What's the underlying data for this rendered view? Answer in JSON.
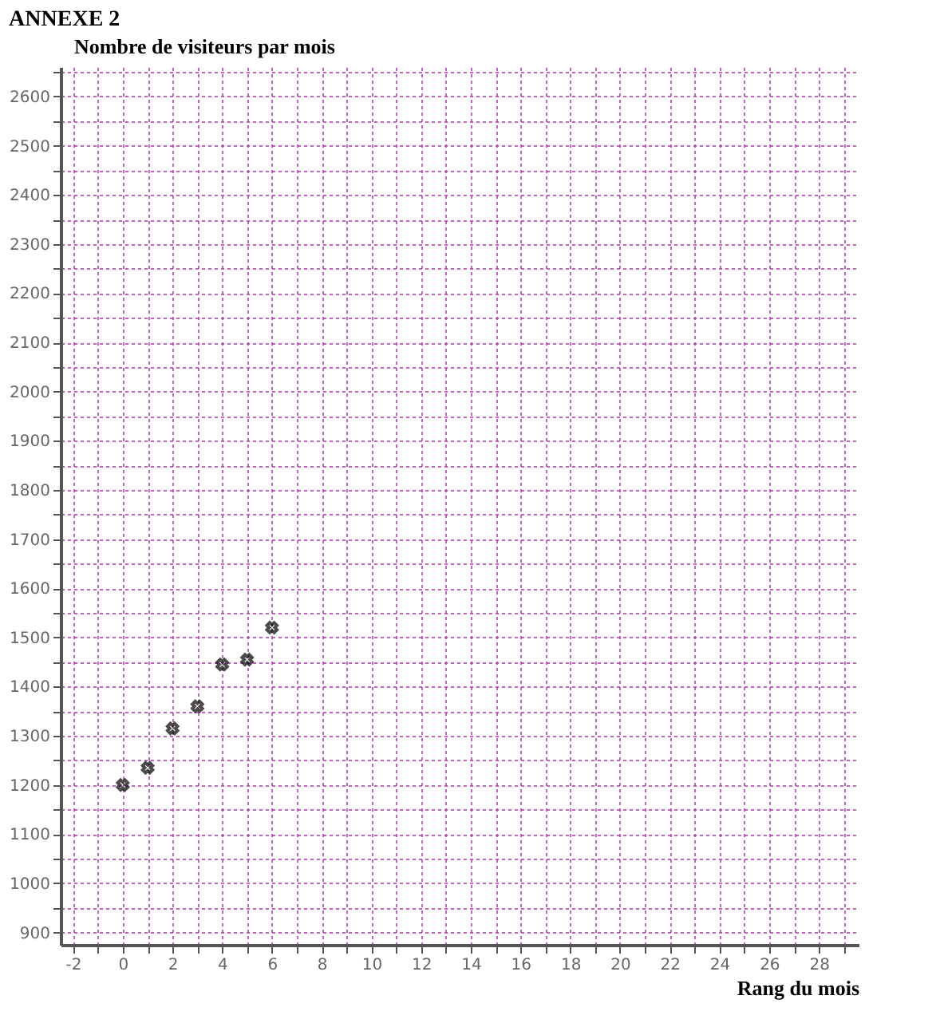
{
  "chart_data": {
    "type": "scatter",
    "title": "ANNEXE 2",
    "xlabel": "Rang du mois",
    "ylabel": "Nombre de visiteurs par mois",
    "x": [
      0,
      1,
      2,
      3,
      4,
      5,
      6
    ],
    "series": [
      {
        "color": "#000000",
        "values": [
          1200,
          1235,
          1315,
          1360,
          1445,
          1455,
          1520
        ]
      }
    ],
    "marker": "cross",
    "grid": true,
    "xlim": [
      -2.5,
      29.6
    ],
    "ylim": [
      875,
      2660
    ],
    "xticks": [
      -2,
      {
        "value": -1,
        "label": null
      },
      0,
      {
        "value": 1,
        "label": null
      },
      2,
      {
        "value": 3,
        "label": null
      },
      4,
      {
        "value": 5,
        "label": null
      },
      6,
      {
        "value": 7,
        "label": null
      },
      8,
      {
        "value": 9,
        "label": null
      },
      10,
      {
        "value": 11,
        "label": null
      },
      12,
      {
        "value": 13,
        "label": null
      },
      14,
      {
        "value": 15,
        "label": null
      },
      16,
      {
        "value": 17,
        "label": null
      },
      18,
      {
        "value": 19,
        "label": null
      },
      20,
      {
        "value": 21,
        "label": null
      },
      22,
      {
        "value": 23,
        "label": null
      },
      24,
      {
        "value": 25,
        "label": null
      },
      26,
      {
        "value": 27,
        "label": null
      },
      28,
      {
        "value": 29,
        "label": null
      }
    ],
    "yticks": [
      900,
      {
        "value": 950,
        "label": null
      },
      1000,
      {
        "value": 1050,
        "label": null
      },
      1100,
      {
        "value": 1150,
        "label": null
      },
      1200,
      {
        "value": 1250,
        "label": null
      },
      1300,
      {
        "value": 1350,
        "label": null
      },
      1400,
      {
        "value": 1450,
        "label": null
      },
      1500,
      {
        "value": 1550,
        "label": null
      },
      1600,
      {
        "value": 1650,
        "label": null
      },
      1700,
      {
        "value": 1750,
        "label": null
      },
      1800,
      {
        "value": 1850,
        "label": null
      },
      1900,
      {
        "value": 1950,
        "label": null
      },
      2000,
      {
        "value": 2050,
        "label": null
      },
      2100,
      {
        "value": 2150,
        "label": null
      },
      2200,
      {
        "value": 2250,
        "label": null
      },
      2300,
      {
        "value": 2350,
        "label": null
      },
      2400,
      {
        "value": 2450,
        "label": null
      },
      2500,
      {
        "value": 2550,
        "label": null
      },
      2600,
      {
        "value": 2650,
        "label": null
      }
    ]
  }
}
